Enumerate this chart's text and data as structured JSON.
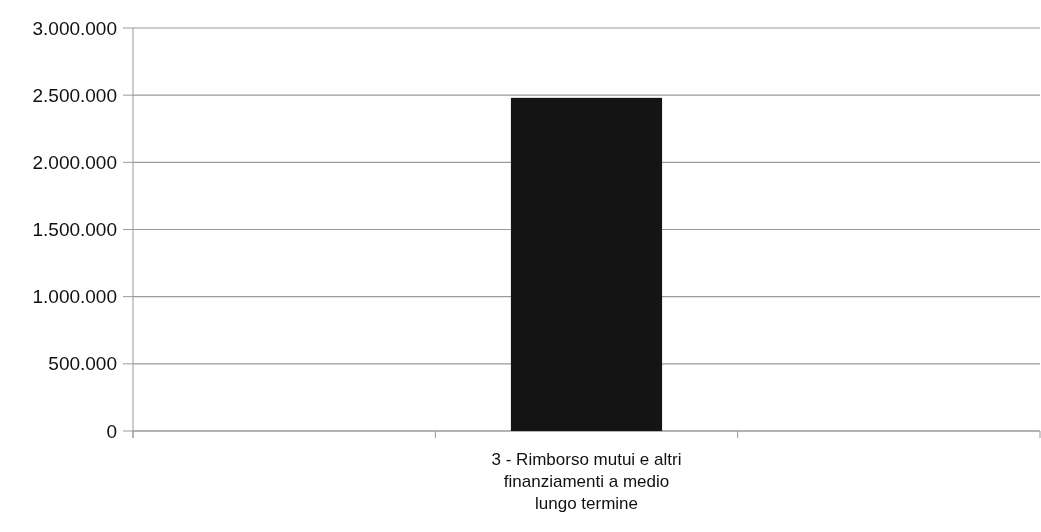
{
  "chart_data": {
    "type": "bar",
    "categories": [
      null,
      "3 - Rimborso mutui e altri finanziamenti a medio lungo termine",
      null
    ],
    "values": [
      null,
      2480000,
      null
    ],
    "color": "#141414",
    "ylim": [
      0,
      3000000
    ],
    "yticks": [
      {
        "value": 0,
        "label": "0"
      },
      {
        "value": 500000,
        "label": "500.000"
      },
      {
        "value": 1000000,
        "label": "1.000.000"
      },
      {
        "value": 1500000,
        "label": "1.500.000"
      },
      {
        "value": 2000000,
        "label": "2.000.000"
      },
      {
        "value": 2500000,
        "label": "2.500.000"
      },
      {
        "value": 3000000,
        "label": "3.000.000"
      }
    ],
    "grid": "y"
  }
}
